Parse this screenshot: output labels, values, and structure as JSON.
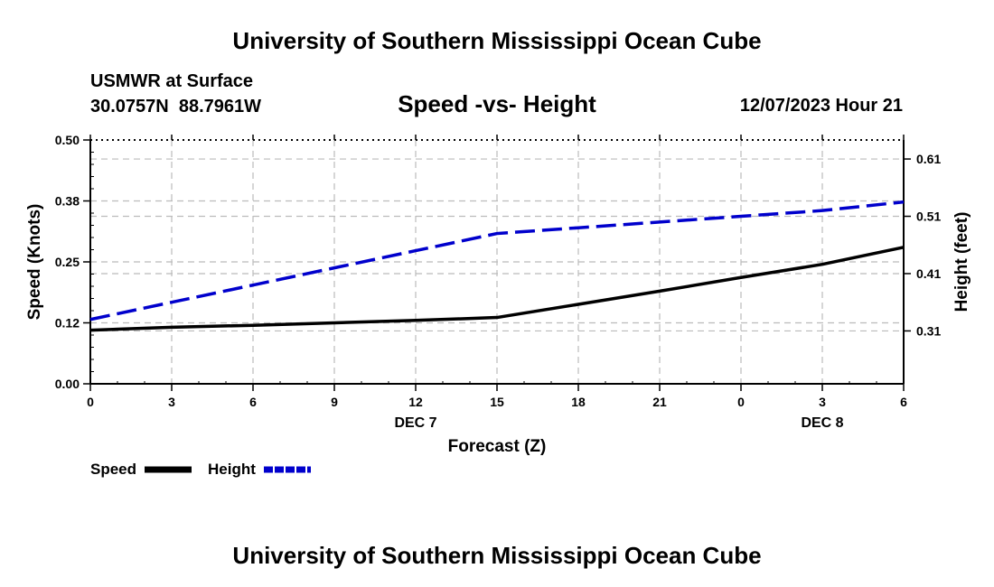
{
  "header": {
    "title": "University of Southern Mississippi Ocean Cube",
    "station_name": "USMWR at Surface",
    "coordinates": "30.0757N  88.7961W",
    "subtitle": "Speed -vs- Height",
    "datetime": "12/07/2023 Hour 21"
  },
  "footer": {
    "title": "University of Southern Mississippi Ocean Cube"
  },
  "chart_data": {
    "type": "line",
    "xlabel": "Forecast (Z)",
    "x_ticks": [
      "0",
      "3",
      "6",
      "9",
      "12",
      "15",
      "18",
      "21",
      "0",
      "3",
      "6"
    ],
    "x_hours": [
      0,
      3,
      6,
      9,
      12,
      15,
      18,
      21,
      24,
      27,
      30
    ],
    "date_labels": [
      {
        "text": "DEC 7",
        "hour": 12
      },
      {
        "text": "DEC 8",
        "hour": 27
      }
    ],
    "left_axis": {
      "label": "Speed (Knots)",
      "ylim": [
        0.0,
        0.5
      ],
      "ticks": [
        0.0,
        0.125,
        0.25,
        0.375,
        0.5
      ],
      "tick_labels": [
        "0.00",
        "0.12",
        "0.25",
        "0.38",
        "0.50"
      ]
    },
    "right_axis": {
      "label": "Height (feet)",
      "ylim": [
        0.2177,
        0.6432
      ],
      "ticks": [
        0.31,
        0.41,
        0.51,
        0.61
      ],
      "tick_labels": [
        "0.31",
        "0.41",
        "0.51",
        "0.61"
      ]
    },
    "series": [
      {
        "name": "Speed",
        "axis": "left",
        "color": "#000000",
        "dash": "solid",
        "x": [
          0,
          3,
          6,
          9,
          12,
          15,
          18,
          21,
          24,
          27,
          30
        ],
        "values": [
          0.11,
          0.116,
          0.12,
          0.125,
          0.13,
          0.136,
          0.163,
          0.19,
          0.218,
          0.245,
          0.28
        ]
      },
      {
        "name": "Height",
        "axis": "right",
        "color": "#0000cc",
        "dash": "dashed",
        "x": [
          0,
          3,
          6,
          9,
          12,
          15,
          18,
          21,
          24,
          27,
          30
        ],
        "values": [
          0.33,
          0.36,
          0.39,
          0.42,
          0.45,
          0.48,
          0.49,
          0.5,
          0.51,
          0.52,
          0.535
        ]
      }
    ],
    "legend": [
      {
        "label": "Speed",
        "color": "#000000",
        "dash": "solid"
      },
      {
        "label": "Height",
        "color": "#0000cc",
        "dash": "dashed"
      }
    ]
  }
}
